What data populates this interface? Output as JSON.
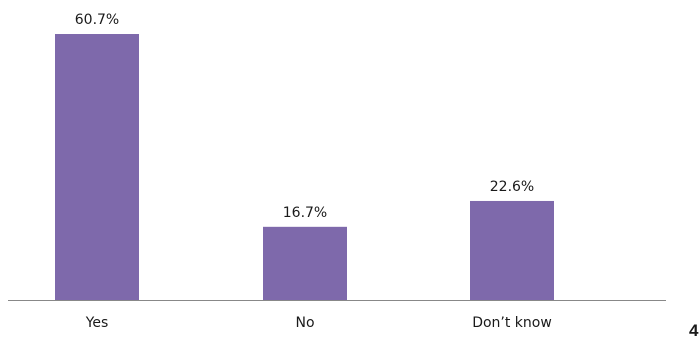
{
  "chart_data": {
    "type": "bar",
    "title": "",
    "xlabel": "",
    "ylabel": "",
    "categories": [
      "Yes",
      "No",
      "Don’t know"
    ],
    "values": [
      60.7,
      16.7,
      22.6
    ],
    "value_labels": [
      "60.7%",
      "16.7%",
      "22.6%"
    ],
    "unit": "%",
    "ylim": [
      0,
      65
    ],
    "grid": false,
    "legend": "none",
    "bar_color": "#7e69ab",
    "axis_color": "#888888"
  },
  "page": {
    "number": "4"
  }
}
